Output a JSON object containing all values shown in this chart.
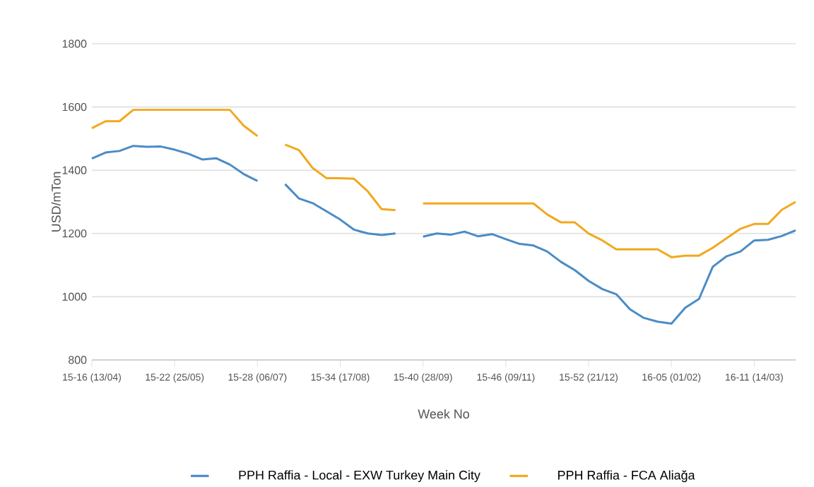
{
  "chart_data": {
    "type": "line",
    "xlabel": "Week No",
    "ylabel": "USD/mTon",
    "categories": [
      "15-16 (13/04)",
      null,
      null,
      null,
      null,
      null,
      "15-22 (25/05)",
      null,
      null,
      null,
      null,
      null,
      "15-28 (06/07)",
      null,
      null,
      null,
      null,
      null,
      "15-34 (17/08)",
      null,
      null,
      null,
      null,
      null,
      "15-40 (28/09)",
      null,
      null,
      null,
      null,
      null,
      "15-46 (09/11)",
      null,
      null,
      null,
      null,
      null,
      "15-52 (21/12)",
      null,
      null,
      null,
      null,
      null,
      "16-05 (01/02)",
      null,
      null,
      null,
      null,
      null,
      "16-11 (14/03)",
      null,
      null,
      null
    ],
    "ylim": [
      800,
      1800
    ],
    "yticks": [
      800,
      1000,
      1200,
      1400,
      1600,
      1800
    ],
    "grid": "y",
    "legend": "bottom",
    "series": [
      {
        "name": "PPH Raffia - Local - EXW Turkey Main City",
        "color": "#4a8cc6",
        "values": [
          1437,
          1456,
          1461,
          1477,
          1474,
          1475,
          1465,
          1452,
          1434,
          1438,
          1418,
          1388,
          1366,
          null,
          1356,
          1311,
          1296,
          1270,
          1244,
          1212,
          1200,
          1195,
          1200,
          null,
          1190,
          1200,
          1196,
          1206,
          1191,
          1198,
          1182,
          1167,
          1162,
          1143,
          1110,
          1084,
          1050,
          1024,
          1008,
          960,
          933,
          921,
          915,
          965,
          993,
          1095,
          1128,
          1143,
          1178,
          1180,
          1192,
          1210
        ]
      },
      {
        "name": "PPH Raffia - FCA Aliağa",
        "color": "#f2a81d",
        "values": [
          1533,
          1555,
          1555,
          1591,
          1591,
          1591,
          1591,
          1591,
          1591,
          1591,
          1591,
          1541,
          1508,
          null,
          1481,
          1464,
          1407,
          1375,
          1375,
          1373,
          1333,
          1277,
          1274,
          null,
          1295,
          1295,
          1295,
          1295,
          1295,
          1295,
          1295,
          1295,
          1295,
          1260,
          1235,
          1235,
          1200,
          1178,
          1150,
          1150,
          1150,
          1150,
          1125,
          1130,
          1130,
          1155,
          1185,
          1215,
          1230,
          1230,
          1275,
          1300
        ]
      }
    ]
  }
}
